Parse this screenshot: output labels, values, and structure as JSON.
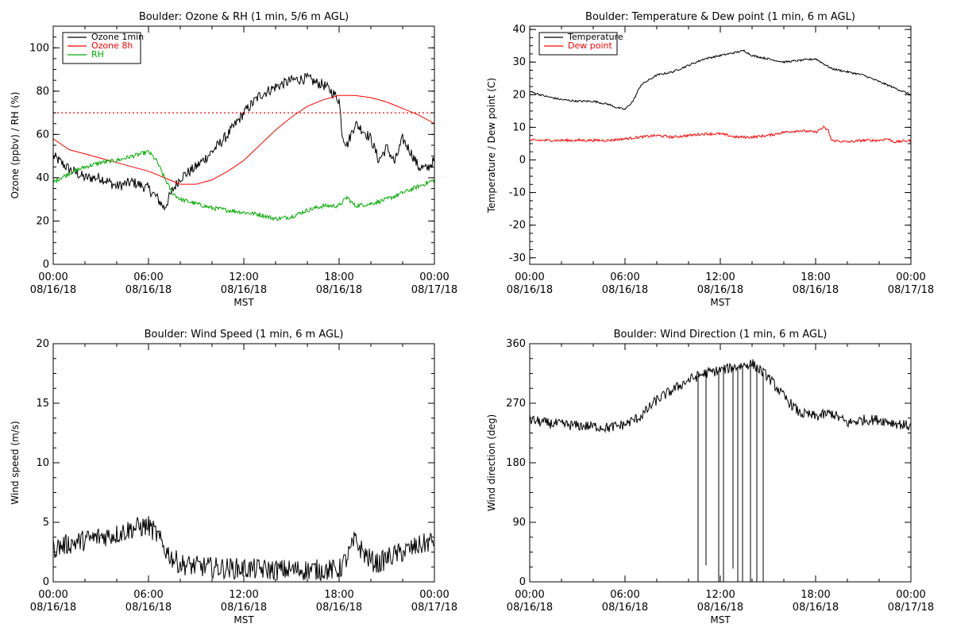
{
  "chart_data": [
    {
      "type": "line",
      "title": "Boulder: Ozone & RH (1 min, 5/6 m AGL)",
      "ylabel": "Ozone (ppbv) / RH (%)",
      "xlabel": "MST",
      "xlim": [
        0,
        24
      ],
      "ylim": [
        0,
        110
      ],
      "x_ticks": [
        {
          "x": 0,
          "time": "00:00",
          "date": "08/16/18"
        },
        {
          "x": 6,
          "time": "06:00",
          "date": "08/16/18"
        },
        {
          "x": 12,
          "time": "12:00",
          "date": "08/16/18"
        },
        {
          "x": 18,
          "time": "18:00",
          "date": "08/16/18"
        },
        {
          "x": 24,
          "time": "00:00",
          "date": "08/17/18"
        }
      ],
      "y_ticks": [
        0,
        20,
        40,
        60,
        80,
        100
      ],
      "legend_position": "top-left",
      "reference_line": {
        "y": 70,
        "color": "#ff0000",
        "style": "dotted"
      },
      "series": [
        {
          "name": "Ozone 1min",
          "color": "#000000",
          "noise": 2.5,
          "x": [
            0,
            1,
            2,
            3,
            4,
            5,
            6,
            6.5,
            7,
            7.5,
            8,
            9,
            10,
            11,
            12,
            13,
            14,
            15,
            16,
            16.5,
            17,
            17.5,
            18,
            18.2,
            18.5,
            19,
            19.5,
            20,
            20.5,
            21,
            21.5,
            22,
            22.5,
            23,
            23.5,
            24
          ],
          "values": [
            50,
            44,
            40,
            40,
            36,
            38,
            35,
            31,
            26,
            34,
            40,
            45,
            52,
            60,
            70,
            78,
            82,
            85,
            86,
            84,
            83,
            80,
            76,
            60,
            55,
            65,
            62,
            58,
            48,
            54,
            47,
            58,
            52,
            45,
            44,
            48
          ]
        },
        {
          "name": "Ozone 8h",
          "color": "#ff0000",
          "noise": 0,
          "x": [
            0,
            1,
            2,
            3,
            4,
            5,
            6,
            7,
            8,
            9,
            10,
            11,
            12,
            13,
            14,
            15,
            16,
            17,
            18,
            19,
            20,
            21,
            22,
            23,
            24
          ],
          "values": [
            58,
            53,
            51,
            49,
            47,
            45,
            43,
            40,
            37,
            37,
            39,
            43,
            48,
            55,
            62,
            68,
            73,
            76,
            78,
            78,
            77,
            75,
            72,
            69,
            65
          ]
        },
        {
          "name": "RH",
          "color": "#00aa00",
          "noise": 1.0,
          "x": [
            0,
            1,
            2,
            3,
            4,
            5,
            6,
            6.5,
            7,
            7.5,
            8,
            9,
            10,
            11,
            12,
            13,
            14,
            15,
            16,
            17,
            18,
            18.5,
            19,
            20,
            21,
            22,
            23,
            24
          ],
          "values": [
            38,
            42,
            45,
            47,
            48,
            50,
            52,
            48,
            40,
            33,
            30,
            28,
            26,
            25,
            24,
            23,
            21,
            22,
            25,
            27,
            27,
            31,
            27,
            28,
            30,
            33,
            36,
            39
          ]
        }
      ]
    },
    {
      "type": "line",
      "title": "Boulder: Temperature & Dew point (1 min, 6 m AGL)",
      "ylabel": "Temperature / Dew point (C)",
      "xlabel": "MST",
      "xlim": [
        0,
        24
      ],
      "ylim": [
        -32,
        41
      ],
      "x_ticks": [
        {
          "x": 0,
          "time": "00:00",
          "date": "08/16/18"
        },
        {
          "x": 6,
          "time": "06:00",
          "date": "08/16/18"
        },
        {
          "x": 12,
          "time": "12:00",
          "date": "08/16/18"
        },
        {
          "x": 18,
          "time": "18:00",
          "date": "08/16/18"
        },
        {
          "x": 24,
          "time": "00:00",
          "date": "08/17/18"
        }
      ],
      "y_ticks": [
        -30,
        -20,
        -10,
        0,
        10,
        20,
        30,
        40
      ],
      "legend_position": "top-left",
      "series": [
        {
          "name": "Temperature",
          "color": "#000000",
          "noise": 0.3,
          "x": [
            0,
            1,
            2,
            3,
            4,
            5,
            5.5,
            6,
            6.5,
            7,
            8,
            9,
            10,
            11,
            12,
            13,
            13.5,
            14,
            15,
            16,
            17,
            18,
            19,
            20,
            21,
            22,
            23,
            24
          ],
          "values": [
            21,
            19.5,
            18.5,
            18,
            18,
            17,
            16,
            15.5,
            18,
            23,
            26,
            27,
            29,
            31,
            32,
            33,
            33.5,
            32,
            31,
            30,
            30.5,
            31,
            28,
            27,
            26,
            24,
            22,
            20
          ]
        },
        {
          "name": "Dew point",
          "color": "#ff0000",
          "noise": 0.4,
          "x": [
            0,
            1,
            2,
            3,
            4,
            5,
            6,
            7,
            8,
            9,
            10,
            11,
            12,
            13,
            14,
            15,
            16,
            17,
            18,
            18.5,
            18.8,
            19,
            20,
            21,
            22,
            22.5,
            23,
            24
          ],
          "values": [
            6,
            6,
            6,
            6,
            6,
            6,
            6.5,
            7,
            7.5,
            7,
            7.5,
            8,
            8,
            7,
            7,
            7.5,
            8.5,
            9,
            8.5,
            10,
            9,
            6,
            5.5,
            6,
            6,
            6.5,
            5.5,
            6
          ]
        }
      ]
    },
    {
      "type": "line",
      "title": "Boulder: Wind Speed (1 min, 6 m AGL)",
      "ylabel": "Wind speed (m/s)",
      "xlabel": "MST",
      "xlim": [
        0,
        24
      ],
      "ylim": [
        0,
        20
      ],
      "x_ticks": [
        {
          "x": 0,
          "time": "00:00",
          "date": "08/16/18"
        },
        {
          "x": 6,
          "time": "06:00",
          "date": "08/16/18"
        },
        {
          "x": 12,
          "time": "12:00",
          "date": "08/16/18"
        },
        {
          "x": 18,
          "time": "18:00",
          "date": "08/16/18"
        },
        {
          "x": 24,
          "time": "00:00",
          "date": "08/17/18"
        }
      ],
      "y_ticks": [
        0,
        5,
        10,
        15,
        20
      ],
      "series": [
        {
          "name": "",
          "color": "#000000",
          "noise": 0.9,
          "x": [
            0,
            1,
            2,
            3,
            4,
            5,
            6,
            6.5,
            7,
            7.5,
            8,
            9,
            10,
            12,
            14,
            16,
            17,
            18,
            18.5,
            19,
            19.5,
            20,
            20.5,
            21,
            22,
            23,
            24
          ],
          "values": [
            2.8,
            3.2,
            3.5,
            3.8,
            4,
            4.5,
            4.7,
            4,
            2.8,
            2,
            1.5,
            1.3,
            1.2,
            1.1,
            1,
            1,
            1,
            1,
            2,
            3.5,
            2.5,
            1.8,
            1.5,
            2,
            2.5,
            3,
            3.5
          ]
        }
      ]
    },
    {
      "type": "line",
      "title": "Boulder: Wind Direction (1 min, 6 m AGL)",
      "ylabel": "Wind direction (deg)",
      "xlabel": "MST",
      "xlim": [
        0,
        24
      ],
      "ylim": [
        0,
        360
      ],
      "x_ticks": [
        {
          "x": 0,
          "time": "00:00",
          "date": "08/16/18"
        },
        {
          "x": 6,
          "time": "06:00",
          "date": "08/16/18"
        },
        {
          "x": 12,
          "time": "12:00",
          "date": "08/16/18"
        },
        {
          "x": 18,
          "time": "18:00",
          "date": "08/16/18"
        },
        {
          "x": 24,
          "time": "00:00",
          "date": "08/17/18"
        }
      ],
      "y_ticks": [
        0,
        90,
        180,
        270,
        360
      ],
      "series": [
        {
          "name": "",
          "color": "#000000",
          "noise": 8,
          "x": [
            0,
            1,
            2,
            3,
            4,
            5,
            6,
            7,
            8,
            9,
            10,
            11,
            12,
            13,
            14,
            15,
            16,
            17,
            18,
            19,
            20,
            21,
            22,
            23,
            24
          ],
          "values": [
            245,
            240,
            238,
            236,
            235,
            233,
            238,
            250,
            275,
            290,
            305,
            315,
            320,
            325,
            330,
            310,
            280,
            255,
            250,
            255,
            240,
            245,
            245,
            240,
            235
          ],
          "spikes": [
            10.6,
            11.1,
            11.9,
            12.2,
            12.8,
            13.1,
            13.4,
            13.9,
            14.3,
            14.7
          ],
          "spike_values": [
            0,
            25,
            0,
            0,
            20,
            0,
            0,
            0,
            0,
            0
          ]
        }
      ]
    }
  ]
}
